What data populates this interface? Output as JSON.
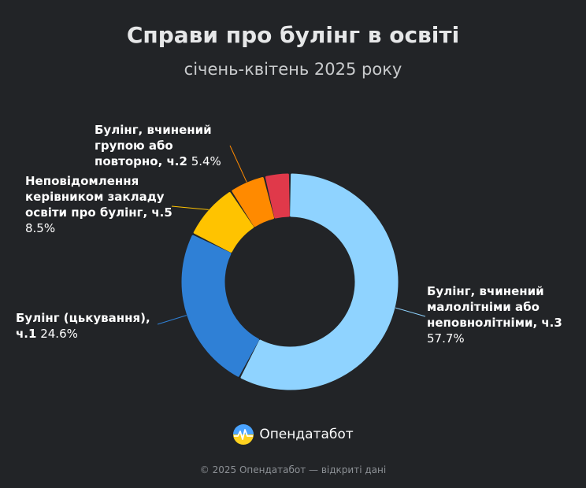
{
  "header": {
    "title": "Справи про булінг в освіті",
    "subtitle": "січень-квітень 2025 року"
  },
  "chart_data": {
    "type": "pie",
    "variant": "donut",
    "slices": [
      {
        "label": "Булінг, вчинений малолітніми або неповнолітніми, ч.3",
        "value": 57.7,
        "value_label": "57.7%",
        "color": "#8fd3ff"
      },
      {
        "label": "Булінг (цькування), ч.1",
        "value": 24.6,
        "value_label": "24.6%",
        "color": "#2f80d6"
      },
      {
        "label": "Неповідомлення керівником закладу освіти про булінг, ч.5",
        "value": 8.5,
        "value_label": "8.5%",
        "color": "#ffc300"
      },
      {
        "label": "Булінг, вчинений групою або повторно, ч.2",
        "value": 5.4,
        "value_label": "5.4%",
        "color": "#ff8a00"
      },
      {
        "label": "",
        "value": 3.8,
        "value_label": "",
        "color": "#e0394a"
      }
    ]
  },
  "labels": {
    "s0": {
      "name": "Булінг, вчинений малолітніми або неповнолітніми, ч.3",
      "pct": "57.7%"
    },
    "s1": {
      "name": "Булінг (цькування), ч.1",
      "pct": "24.6%"
    },
    "s2": {
      "name": "Неповідомлення керівником закладу освіти про булінг, ч.5",
      "pct": "8.5%"
    },
    "s3": {
      "name": "Булінг, вчинений групою або повторно, ч.2",
      "pct": "5.4%"
    }
  },
  "brand": {
    "name": "Опендатабот",
    "icon": "opendatabot-logo-icon"
  },
  "footer": {
    "text": "© 2025 Опендатабот — відкриті дані"
  }
}
